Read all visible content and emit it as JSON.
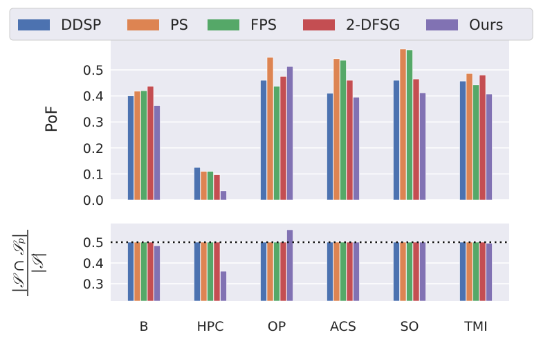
{
  "chart_data": [
    {
      "type": "bar",
      "panel": "top",
      "ylabel": "PoF",
      "ylim": [
        0,
        0.6
      ],
      "yticks": [
        "0.0",
        "0.1",
        "0.2",
        "0.3",
        "0.4",
        "0.5"
      ],
      "grid": true,
      "categories": [
        "B",
        "HPC",
        "OP",
        "ACS",
        "SO",
        "TMI"
      ],
      "series": [
        {
          "name": "DDSP",
          "color": "#4c72b0",
          "values": [
            0.4,
            0.125,
            0.46,
            0.41,
            0.46,
            0.457
          ]
        },
        {
          "name": "PS",
          "color": "#dd8452",
          "values": [
            0.418,
            0.11,
            0.548,
            0.543,
            0.58,
            0.486
          ]
        },
        {
          "name": "FPS",
          "color": "#55a868",
          "values": [
            0.42,
            0.11,
            0.437,
            0.537,
            0.577,
            0.442
          ]
        },
        {
          "name": "2-DFSG",
          "color": "#c44e52",
          "values": [
            0.437,
            0.097,
            0.475,
            0.46,
            0.465,
            0.48
          ]
        },
        {
          "name": "Ours",
          "color": "#8172b3",
          "values": [
            0.363,
            0.035,
            0.513,
            0.395,
            0.412,
            0.407
          ]
        }
      ]
    },
    {
      "type": "bar",
      "panel": "bottom",
      "ylabel": "|S ∩ S_p| / |S|",
      "ylim": [
        0.2,
        0.57
      ],
      "yticks": [
        "0.3",
        "0.4",
        "0.5"
      ],
      "grid": true,
      "reference_line": 0.5,
      "categories": [
        "B",
        "HPC",
        "OP",
        "ACS",
        "SO",
        "TMI"
      ],
      "series": [
        {
          "name": "DDSP",
          "values": [
            0.5,
            0.5,
            0.5,
            0.5,
            0.5,
            0.5
          ]
        },
        {
          "name": "PS",
          "values": [
            0.5,
            0.5,
            0.5,
            0.5,
            0.5,
            0.5
          ]
        },
        {
          "name": "FPS",
          "values": [
            0.5,
            0.5,
            0.5,
            0.5,
            0.5,
            0.5
          ]
        },
        {
          "name": "2-DFSG",
          "values": [
            0.5,
            0.5,
            0.5,
            0.5,
            0.5,
            0.5
          ]
        },
        {
          "name": "Ours",
          "values": [
            0.483,
            0.36,
            0.56,
            0.5,
            0.5,
            0.495
          ]
        }
      ]
    }
  ],
  "legend": {
    "location": "top",
    "entries": [
      "DDSP",
      "PS",
      "FPS",
      "2-DFSG",
      "Ours"
    ]
  },
  "bottom_ylabel_text": {
    "numerator": "|𝒮 ∩ 𝒮ₚ|",
    "denominator": "|𝒮|"
  }
}
